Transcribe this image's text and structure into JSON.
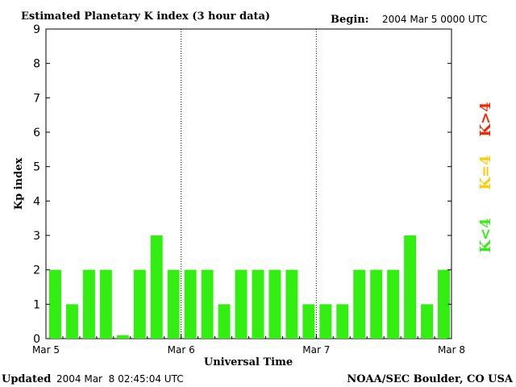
{
  "header": {
    "title": "Estimated Planetary K index (3 hour data)",
    "begin_label": "Begin:",
    "begin_value": "2004 Mar 5 0000 UTC"
  },
  "footer": {
    "updated_label": "Updated",
    "updated_value": "2004 Mar  8 02:45:04 UTC",
    "credit": "NOAA/SEC Boulder, CO USA"
  },
  "legend": {
    "items": [
      {
        "label": "K>4",
        "color": "#ff2200"
      },
      {
        "label": "K=4",
        "color": "#ffcc00"
      },
      {
        "label": "K<4",
        "color": "#33ee11"
      }
    ]
  },
  "chart_data": {
    "type": "bar",
    "ylabel": "Kp index",
    "xlabel": "Universal Time",
    "ylim": [
      0,
      9
    ],
    "yticks": [
      "0",
      "1",
      "2",
      "3",
      "4",
      "5",
      "6",
      "7",
      "8",
      "9"
    ],
    "xlim": [
      0,
      24
    ],
    "xticks": [
      {
        "pos": 0,
        "label": "Mar 5"
      },
      {
        "pos": 8,
        "label": "Mar 6"
      },
      {
        "pos": 16,
        "label": "Mar 7"
      },
      {
        "pos": 24,
        "label": "Mar 8"
      }
    ],
    "day_dividers": [
      8,
      16
    ],
    "bar_color": "#33ee11",
    "values": [
      2,
      1,
      2,
      2,
      0.1,
      2,
      3,
      2,
      2,
      2,
      1,
      2,
      2,
      2,
      2,
      1,
      1,
      1,
      2,
      2,
      2,
      3,
      1,
      2
    ]
  }
}
